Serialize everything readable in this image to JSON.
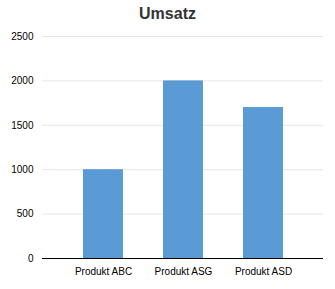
{
  "chart_data": {
    "type": "bar",
    "title": "Umsatz",
    "categories": [
      "Produkt ABC",
      "Produkt ASG",
      "Produkt ASD"
    ],
    "values": [
      1000,
      2000,
      1700
    ],
    "color": "#5B9BD5",
    "ylim": [
      0,
      2500
    ],
    "yticks": [
      0,
      500,
      1000,
      1500,
      2000,
      2500
    ],
    "grid": true
  }
}
